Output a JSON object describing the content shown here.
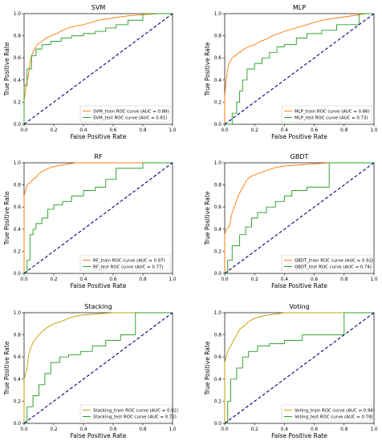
{
  "chart_data": [
    {
      "type": "line",
      "title": "SVM",
      "xlabel": "False Positive Rate",
      "ylabel": "True Positive Rate",
      "xlim": [
        0,
        1
      ],
      "ylim": [
        0,
        1
      ],
      "xticks": [
        "0.0",
        "0.2",
        "0.4",
        "0.6",
        "0.8",
        "1.0"
      ],
      "yticks": [
        "0.0",
        "0.2",
        "0.4",
        "0.6",
        "0.8",
        "1.0"
      ],
      "legend_loc": "lower-right",
      "series": [
        {
          "name": "SVM_train ROC curve (AUC = 0.88)",
          "color": "#ff7f0e",
          "x": [
            0,
            0,
            0.01,
            0.01,
            0.02,
            0.03,
            0.04,
            0.05,
            0.07,
            0.09,
            0.12,
            0.15,
            0.18,
            0.22,
            0.26,
            0.3,
            0.35,
            0.4,
            0.45,
            0.5,
            0.55,
            0.6,
            0.65,
            0.7,
            0.75,
            0.8,
            0.85,
            0.9,
            0.95,
            1
          ],
          "y": [
            0,
            0.22,
            0.3,
            0.35,
            0.38,
            0.45,
            0.55,
            0.62,
            0.68,
            0.72,
            0.75,
            0.78,
            0.8,
            0.82,
            0.85,
            0.87,
            0.89,
            0.9,
            0.92,
            0.94,
            0.95,
            0.96,
            0.97,
            0.98,
            0.985,
            0.99,
            0.995,
            1,
            1,
            1
          ]
        },
        {
          "name": "SVM_test ROC curve (AUC = 0.81)",
          "color": "#2ca02c",
          "x": [
            0,
            0,
            0.02,
            0.02,
            0.05,
            0.05,
            0.08,
            0.08,
            0.12,
            0.12,
            0.18,
            0.18,
            0.25,
            0.25,
            0.32,
            0.32,
            0.4,
            0.4,
            0.48,
            0.48,
            0.55,
            0.55,
            0.62,
            0.62,
            0.7,
            0.7,
            0.8,
            0.8,
            1
          ],
          "y": [
            0,
            0.35,
            0.35,
            0.5,
            0.5,
            0.62,
            0.62,
            0.68,
            0.68,
            0.72,
            0.72,
            0.75,
            0.75,
            0.78,
            0.78,
            0.8,
            0.8,
            0.82,
            0.82,
            0.84,
            0.84,
            0.87,
            0.87,
            0.9,
            0.9,
            0.94,
            0.94,
            1,
            1
          ]
        },
        {
          "name": "",
          "color": "#000080",
          "dashed": true,
          "x": [
            0,
            1
          ],
          "y": [
            0,
            1
          ]
        }
      ]
    },
    {
      "type": "line",
      "title": "MLP",
      "xlabel": "False Positive Rate",
      "ylabel": "True Positive Rate",
      "xlim": [
        0,
        1
      ],
      "ylim": [
        0,
        1
      ],
      "xticks": [
        "0.0",
        "0.2",
        "0.4",
        "0.6",
        "0.8",
        "1.0"
      ],
      "yticks": [
        "0.0",
        "0.2",
        "0.4",
        "0.6",
        "0.8",
        "1.0"
      ],
      "legend_loc": "lower-right",
      "series": [
        {
          "name": "MLP_train ROC curve (AUC = 0.86)",
          "color": "#ff7f0e",
          "x": [
            0,
            0,
            0.01,
            0.02,
            0.03,
            0.05,
            0.07,
            0.1,
            0.13,
            0.16,
            0.2,
            0.24,
            0.28,
            0.32,
            0.36,
            0.4,
            0.45,
            0.5,
            0.55,
            0.6,
            0.65,
            0.7,
            0.75,
            0.8,
            0.85,
            0.9,
            0.95,
            1
          ],
          "y": [
            0,
            0.25,
            0.4,
            0.5,
            0.55,
            0.6,
            0.62,
            0.65,
            0.68,
            0.7,
            0.72,
            0.75,
            0.77,
            0.8,
            0.82,
            0.84,
            0.86,
            0.88,
            0.9,
            0.92,
            0.94,
            0.95,
            0.96,
            0.97,
            0.98,
            0.99,
            1,
            1
          ]
        },
        {
          "name": "MLP_test ROC curve (AUC = 0.73)",
          "color": "#2ca02c",
          "x": [
            0,
            0.05,
            0.05,
            0.08,
            0.08,
            0.1,
            0.1,
            0.12,
            0.12,
            0.15,
            0.15,
            0.2,
            0.2,
            0.25,
            0.25,
            0.3,
            0.3,
            0.35,
            0.35,
            0.4,
            0.4,
            0.48,
            0.48,
            0.55,
            0.55,
            0.65,
            0.65,
            0.75,
            0.75,
            0.9,
            0.9,
            1
          ],
          "y": [
            0,
            0,
            0.1,
            0.1,
            0.2,
            0.2,
            0.3,
            0.3,
            0.4,
            0.4,
            0.5,
            0.5,
            0.55,
            0.55,
            0.6,
            0.6,
            0.65,
            0.65,
            0.7,
            0.7,
            0.72,
            0.72,
            0.78,
            0.78,
            0.82,
            0.82,
            0.85,
            0.85,
            0.9,
            0.9,
            1,
            1
          ]
        },
        {
          "name": "",
          "color": "#000080",
          "dashed": true,
          "x": [
            0,
            1
          ],
          "y": [
            0,
            1
          ]
        }
      ]
    },
    {
      "type": "line",
      "title": "RF",
      "xlabel": "False Positive Rate",
      "ylabel": "True Positive Rate",
      "xlim": [
        0,
        1
      ],
      "ylim": [
        0,
        1
      ],
      "xticks": [
        "0.0",
        "0.2",
        "0.4",
        "0.6",
        "0.8",
        "1.0"
      ],
      "yticks": [
        "0.0",
        "0.2",
        "0.4",
        "0.6",
        "0.8",
        "1.0"
      ],
      "legend_loc": "lower-right",
      "series": [
        {
          "name": "RF_train ROC curve (AUC = 0.97)",
          "color": "#ff7f0e",
          "x": [
            0,
            0,
            0.01,
            0.02,
            0.04,
            0.06,
            0.08,
            0.1,
            0.12,
            0.15,
            0.18,
            0.22,
            0.26,
            0.3,
            0.35,
            0.4,
            1
          ],
          "y": [
            0,
            0.7,
            0.75,
            0.8,
            0.82,
            0.85,
            0.87,
            0.9,
            0.92,
            0.94,
            0.96,
            0.97,
            0.98,
            0.99,
            1,
            1,
            1
          ]
        },
        {
          "name": "RF_test ROC curve (AUC = 0.77)",
          "color": "#2ca02c",
          "x": [
            0,
            0.02,
            0.02,
            0.04,
            0.04,
            0.06,
            0.06,
            0.08,
            0.08,
            0.12,
            0.12,
            0.16,
            0.16,
            0.2,
            0.2,
            0.26,
            0.26,
            0.32,
            0.32,
            0.4,
            0.4,
            0.48,
            0.48,
            0.55,
            0.55,
            0.62,
            0.62,
            0.8,
            0.8,
            1
          ],
          "y": [
            0,
            0,
            0.12,
            0.12,
            0.35,
            0.35,
            0.4,
            0.4,
            0.45,
            0.45,
            0.5,
            0.5,
            0.58,
            0.58,
            0.62,
            0.62,
            0.65,
            0.65,
            0.7,
            0.7,
            0.75,
            0.75,
            0.78,
            0.78,
            0.85,
            0.85,
            0.95,
            0.95,
            1,
            1
          ]
        },
        {
          "name": "",
          "color": "#000080",
          "dashed": true,
          "x": [
            0,
            1
          ],
          "y": [
            0,
            1
          ]
        }
      ]
    },
    {
      "type": "line",
      "title": "GBDT",
      "xlabel": "False Positive Rate",
      "ylabel": "True Positive Rate",
      "xlim": [
        0,
        1
      ],
      "ylim": [
        0,
        1
      ],
      "xticks": [
        "0.0",
        "0.2",
        "0.4",
        "0.6",
        "0.8",
        "1.0"
      ],
      "yticks": [
        "0.0",
        "0.2",
        "0.4",
        "0.6",
        "0.8",
        "1.0"
      ],
      "legend_loc": "lower-right",
      "series": [
        {
          "name": "GBDT_train ROC curve (AUC = 0.92)",
          "color": "#ff7f0e",
          "x": [
            0,
            0,
            0.01,
            0.03,
            0.05,
            0.07,
            0.09,
            0.11,
            0.13,
            0.15,
            0.18,
            0.22,
            0.26,
            0.3,
            0.35,
            0.4,
            0.5,
            0.6,
            0.7,
            0.8,
            1
          ],
          "y": [
            0,
            0.35,
            0.4,
            0.42,
            0.55,
            0.62,
            0.7,
            0.75,
            0.8,
            0.85,
            0.88,
            0.9,
            0.92,
            0.94,
            0.96,
            0.97,
            0.98,
            0.99,
            1,
            1,
            1
          ]
        },
        {
          "name": "GBDT_test ROC curve (AUC = 0.74)",
          "color": "#2ca02c",
          "x": [
            0,
            0.02,
            0.02,
            0.05,
            0.05,
            0.1,
            0.1,
            0.14,
            0.14,
            0.18,
            0.18,
            0.22,
            0.22,
            0.28,
            0.28,
            0.34,
            0.34,
            0.4,
            0.4,
            0.45,
            0.45,
            0.55,
            0.55,
            0.7,
            0.7,
            1
          ],
          "y": [
            0,
            0,
            0.12,
            0.12,
            0.25,
            0.25,
            0.35,
            0.35,
            0.42,
            0.42,
            0.5,
            0.5,
            0.55,
            0.55,
            0.6,
            0.6,
            0.65,
            0.65,
            0.7,
            0.7,
            0.75,
            0.75,
            0.78,
            0.78,
            1,
            1
          ]
        },
        {
          "name": "",
          "color": "#000080",
          "dashed": true,
          "x": [
            0,
            1
          ],
          "y": [
            0,
            1
          ]
        }
      ]
    },
    {
      "type": "line",
      "title": "Stacking",
      "xlabel": "False Positive Rate",
      "ylabel": "True Positive Rate",
      "xlim": [
        0,
        1
      ],
      "ylim": [
        0,
        1
      ],
      "xticks": [
        "0.0",
        "0.2",
        "0.4",
        "0.6",
        "0.8",
        "1.0"
      ],
      "yticks": [
        "0.0",
        "0.2",
        "0.4",
        "0.6",
        "0.8",
        "1.0"
      ],
      "legend_loc": "lower-right",
      "series": [
        {
          "name": "Stacking_train ROC curve (AUC = 0.92)",
          "color": "#c8a000",
          "x": [
            0,
            0,
            0.01,
            0.02,
            0.03,
            0.05,
            0.07,
            0.1,
            0.13,
            0.16,
            0.2,
            0.25,
            0.3,
            0.35,
            0.4,
            0.5,
            0.6,
            0.7,
            0.8,
            1
          ],
          "y": [
            0,
            0.4,
            0.45,
            0.5,
            0.62,
            0.7,
            0.75,
            0.8,
            0.84,
            0.87,
            0.9,
            0.92,
            0.95,
            0.97,
            0.98,
            0.99,
            1,
            1,
            1,
            1
          ]
        },
        {
          "name": "Stacking_test ROC curve (AUC = 0.72)",
          "color": "#2ca02c",
          "x": [
            0,
            0.02,
            0.02,
            0.06,
            0.06,
            0.1,
            0.1,
            0.14,
            0.14,
            0.18,
            0.18,
            0.24,
            0.24,
            0.3,
            0.3,
            0.38,
            0.38,
            0.46,
            0.46,
            0.55,
            0.55,
            0.65,
            0.65,
            0.75,
            0.75,
            1
          ],
          "y": [
            0,
            0,
            0.15,
            0.15,
            0.25,
            0.25,
            0.35,
            0.35,
            0.45,
            0.45,
            0.55,
            0.55,
            0.6,
            0.6,
            0.62,
            0.62,
            0.65,
            0.65,
            0.7,
            0.7,
            0.75,
            0.75,
            0.8,
            0.8,
            1,
            1
          ]
        },
        {
          "name": "",
          "color": "#000080",
          "dashed": true,
          "x": [
            0,
            1
          ],
          "y": [
            0,
            1
          ]
        }
      ]
    },
    {
      "type": "line",
      "title": "Voting",
      "xlabel": "False Positive Rate",
      "ylabel": "True Positive Rate",
      "xlim": [
        0,
        1
      ],
      "ylim": [
        0,
        1
      ],
      "xticks": [
        "0.0",
        "0.2",
        "0.4",
        "0.6",
        "0.8",
        "1.0"
      ],
      "yticks": [
        "0.0",
        "0.2",
        "0.4",
        "0.6",
        "0.8",
        "1.0"
      ],
      "legend_loc": "lower-right",
      "series": [
        {
          "name": "Voting_train ROC curve (AUC = 0.94)",
          "color": "#c8a000",
          "x": [
            0,
            0,
            0.01,
            0.02,
            0.04,
            0.06,
            0.08,
            0.1,
            0.13,
            0.16,
            0.2,
            0.25,
            0.3,
            0.35,
            0.4,
            0.5,
            1
          ],
          "y": [
            0,
            0.55,
            0.6,
            0.65,
            0.7,
            0.75,
            0.8,
            0.85,
            0.88,
            0.92,
            0.95,
            0.97,
            0.98,
            0.99,
            1,
            1,
            1
          ]
        },
        {
          "name": "Voting_test ROC curve (AUC = 0.78)",
          "color": "#2ca02c",
          "x": [
            0,
            0.02,
            0.02,
            0.04,
            0.04,
            0.08,
            0.08,
            0.12,
            0.12,
            0.16,
            0.16,
            0.22,
            0.22,
            0.3,
            0.3,
            0.4,
            0.4,
            0.52,
            0.52,
            0.6,
            0.6,
            0.8,
            0.8,
            1
          ],
          "y": [
            0,
            0,
            0.2,
            0.2,
            0.4,
            0.4,
            0.5,
            0.5,
            0.6,
            0.6,
            0.65,
            0.65,
            0.7,
            0.7,
            0.72,
            0.72,
            0.75,
            0.75,
            0.8,
            0.8,
            0.8,
            0.8,
            1,
            1
          ]
        },
        {
          "name": "",
          "color": "#000080",
          "dashed": true,
          "x": [
            0,
            1
          ],
          "y": [
            0,
            1
          ]
        }
      ]
    }
  ]
}
